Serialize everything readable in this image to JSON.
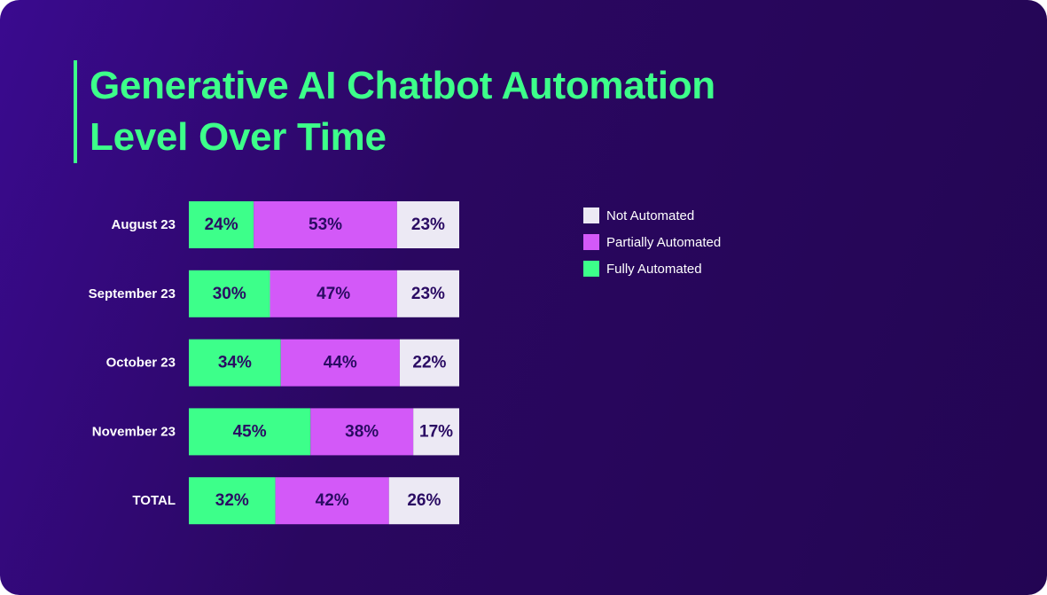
{
  "title_lines": [
    "Generative AI Chatbot Automation",
    "Level Over Time"
  ],
  "colors": {
    "fully": "#3dff8a",
    "partially": "#d359f8",
    "not": "#ece9f4",
    "bar_text": "#2a0b63",
    "category_text": "#ffffff"
  },
  "legend": [
    {
      "label": "Not Automated",
      "color": "#ece9f4"
    },
    {
      "label": "Partially Automated",
      "color": "#d359f8"
    },
    {
      "label": "Fully Automated",
      "color": "#3dff8a"
    }
  ],
  "chart_data": {
    "type": "bar",
    "orientation": "horizontal",
    "stacked": true,
    "categories": [
      "August 23",
      "September 23",
      "October 23",
      "November 23",
      "TOTAL"
    ],
    "series": [
      {
        "name": "Fully Automated",
        "values": [
          24,
          30,
          34,
          45,
          32
        ]
      },
      {
        "name": "Partially Automated",
        "values": [
          53,
          47,
          44,
          38,
          42
        ]
      },
      {
        "name": "Not Automated",
        "values": [
          23,
          23,
          22,
          17,
          26
        ]
      }
    ],
    "value_labels": [
      [
        "24%",
        "30%",
        "34%",
        "45%",
        "32%"
      ],
      [
        "53%",
        "47%",
        "44%",
        "38%",
        "42%"
      ],
      [
        "23%",
        "23%",
        "22%",
        "17%",
        "26%"
      ]
    ],
    "xlim": [
      0,
      100
    ],
    "grid": false,
    "legend_position": "right"
  }
}
